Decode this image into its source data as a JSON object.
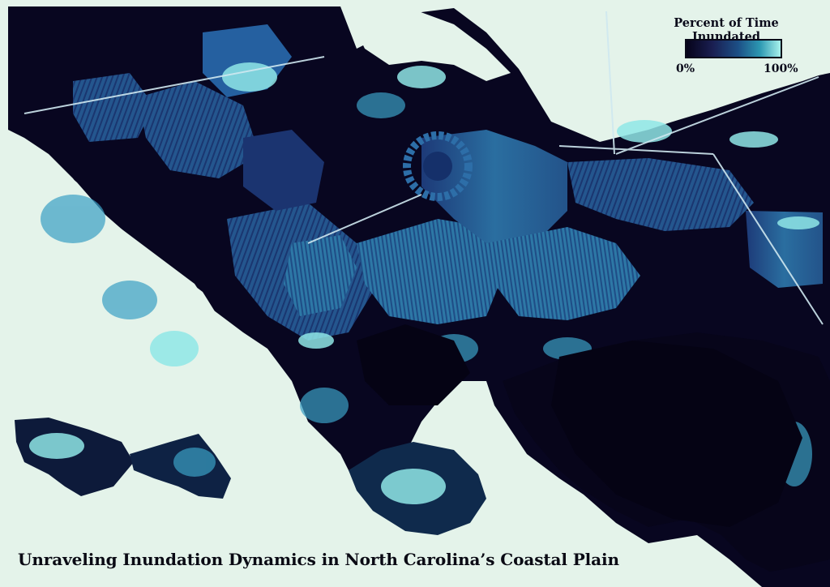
{
  "page": {
    "title": "Unraveling Inundation Dynamics in North Carolina’s Coastal Plain",
    "background_color": "#e4f3ea"
  },
  "legend": {
    "title": "Percent of Time Inundated",
    "min_label": "0%",
    "max_label": "100%",
    "colors": [
      "#06031a",
      "#1a1f52",
      "#1c4f86",
      "#2c98b2",
      "#a8f2ec"
    ]
  },
  "map": {
    "water_color": "#e4f3ea",
    "land_dry_color": "#07051a",
    "inundated_color": "#2a7fa8",
    "frequent_inundation_color": "#a8f2ec"
  }
}
